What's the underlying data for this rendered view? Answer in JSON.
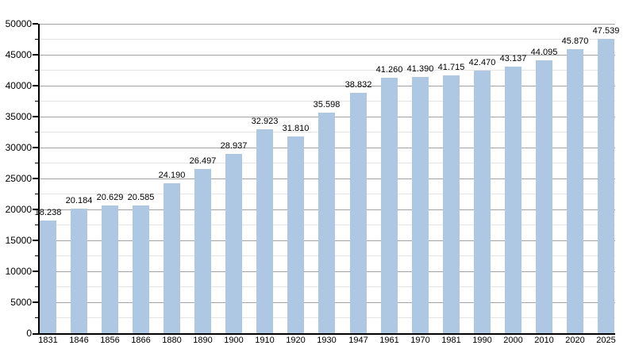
{
  "chart_data": {
    "type": "bar",
    "title": "",
    "xlabel": "",
    "ylabel": "",
    "categories": [
      "1831",
      "1846",
      "1856",
      "1866",
      "1880",
      "1890",
      "1900",
      "1910",
      "1920",
      "1930",
      "1947",
      "1961",
      "1970",
      "1981",
      "1990",
      "2000",
      "2010",
      "2020",
      "2025"
    ],
    "values": [
      18238,
      20184,
      20629,
      20585,
      24190,
      26497,
      28937,
      32923,
      31810,
      35598,
      38832,
      41260,
      41390,
      41715,
      42470,
      43137,
      44095,
      45870,
      47539
    ],
    "value_labels": [
      "18.238",
      "20.184",
      "20.629",
      "20.585",
      "24.190",
      "26.497",
      "28.937",
      "32.923",
      "31.810",
      "35.598",
      "38.832",
      "41.260",
      "41.390",
      "41.715",
      "42.470",
      "43.137",
      "44.095",
      "45.870",
      "47.539"
    ],
    "ylim": [
      0,
      50000
    ],
    "y_major_step": 5000,
    "y_minor_step": 2500,
    "y_tick_labels": [
      "0",
      "5000",
      "10000",
      "15000",
      "20000",
      "25000",
      "30000",
      "35000",
      "40000",
      "45000",
      "50000"
    ],
    "grid": "on",
    "legend": "none",
    "colors": {
      "bar": "#AEC7E2",
      "major_grid": "#A3A3A3",
      "minor_grid": "#E4E4E4",
      "axis": "#000000",
      "text": "#000000",
      "background": "#FFFFFF"
    }
  }
}
